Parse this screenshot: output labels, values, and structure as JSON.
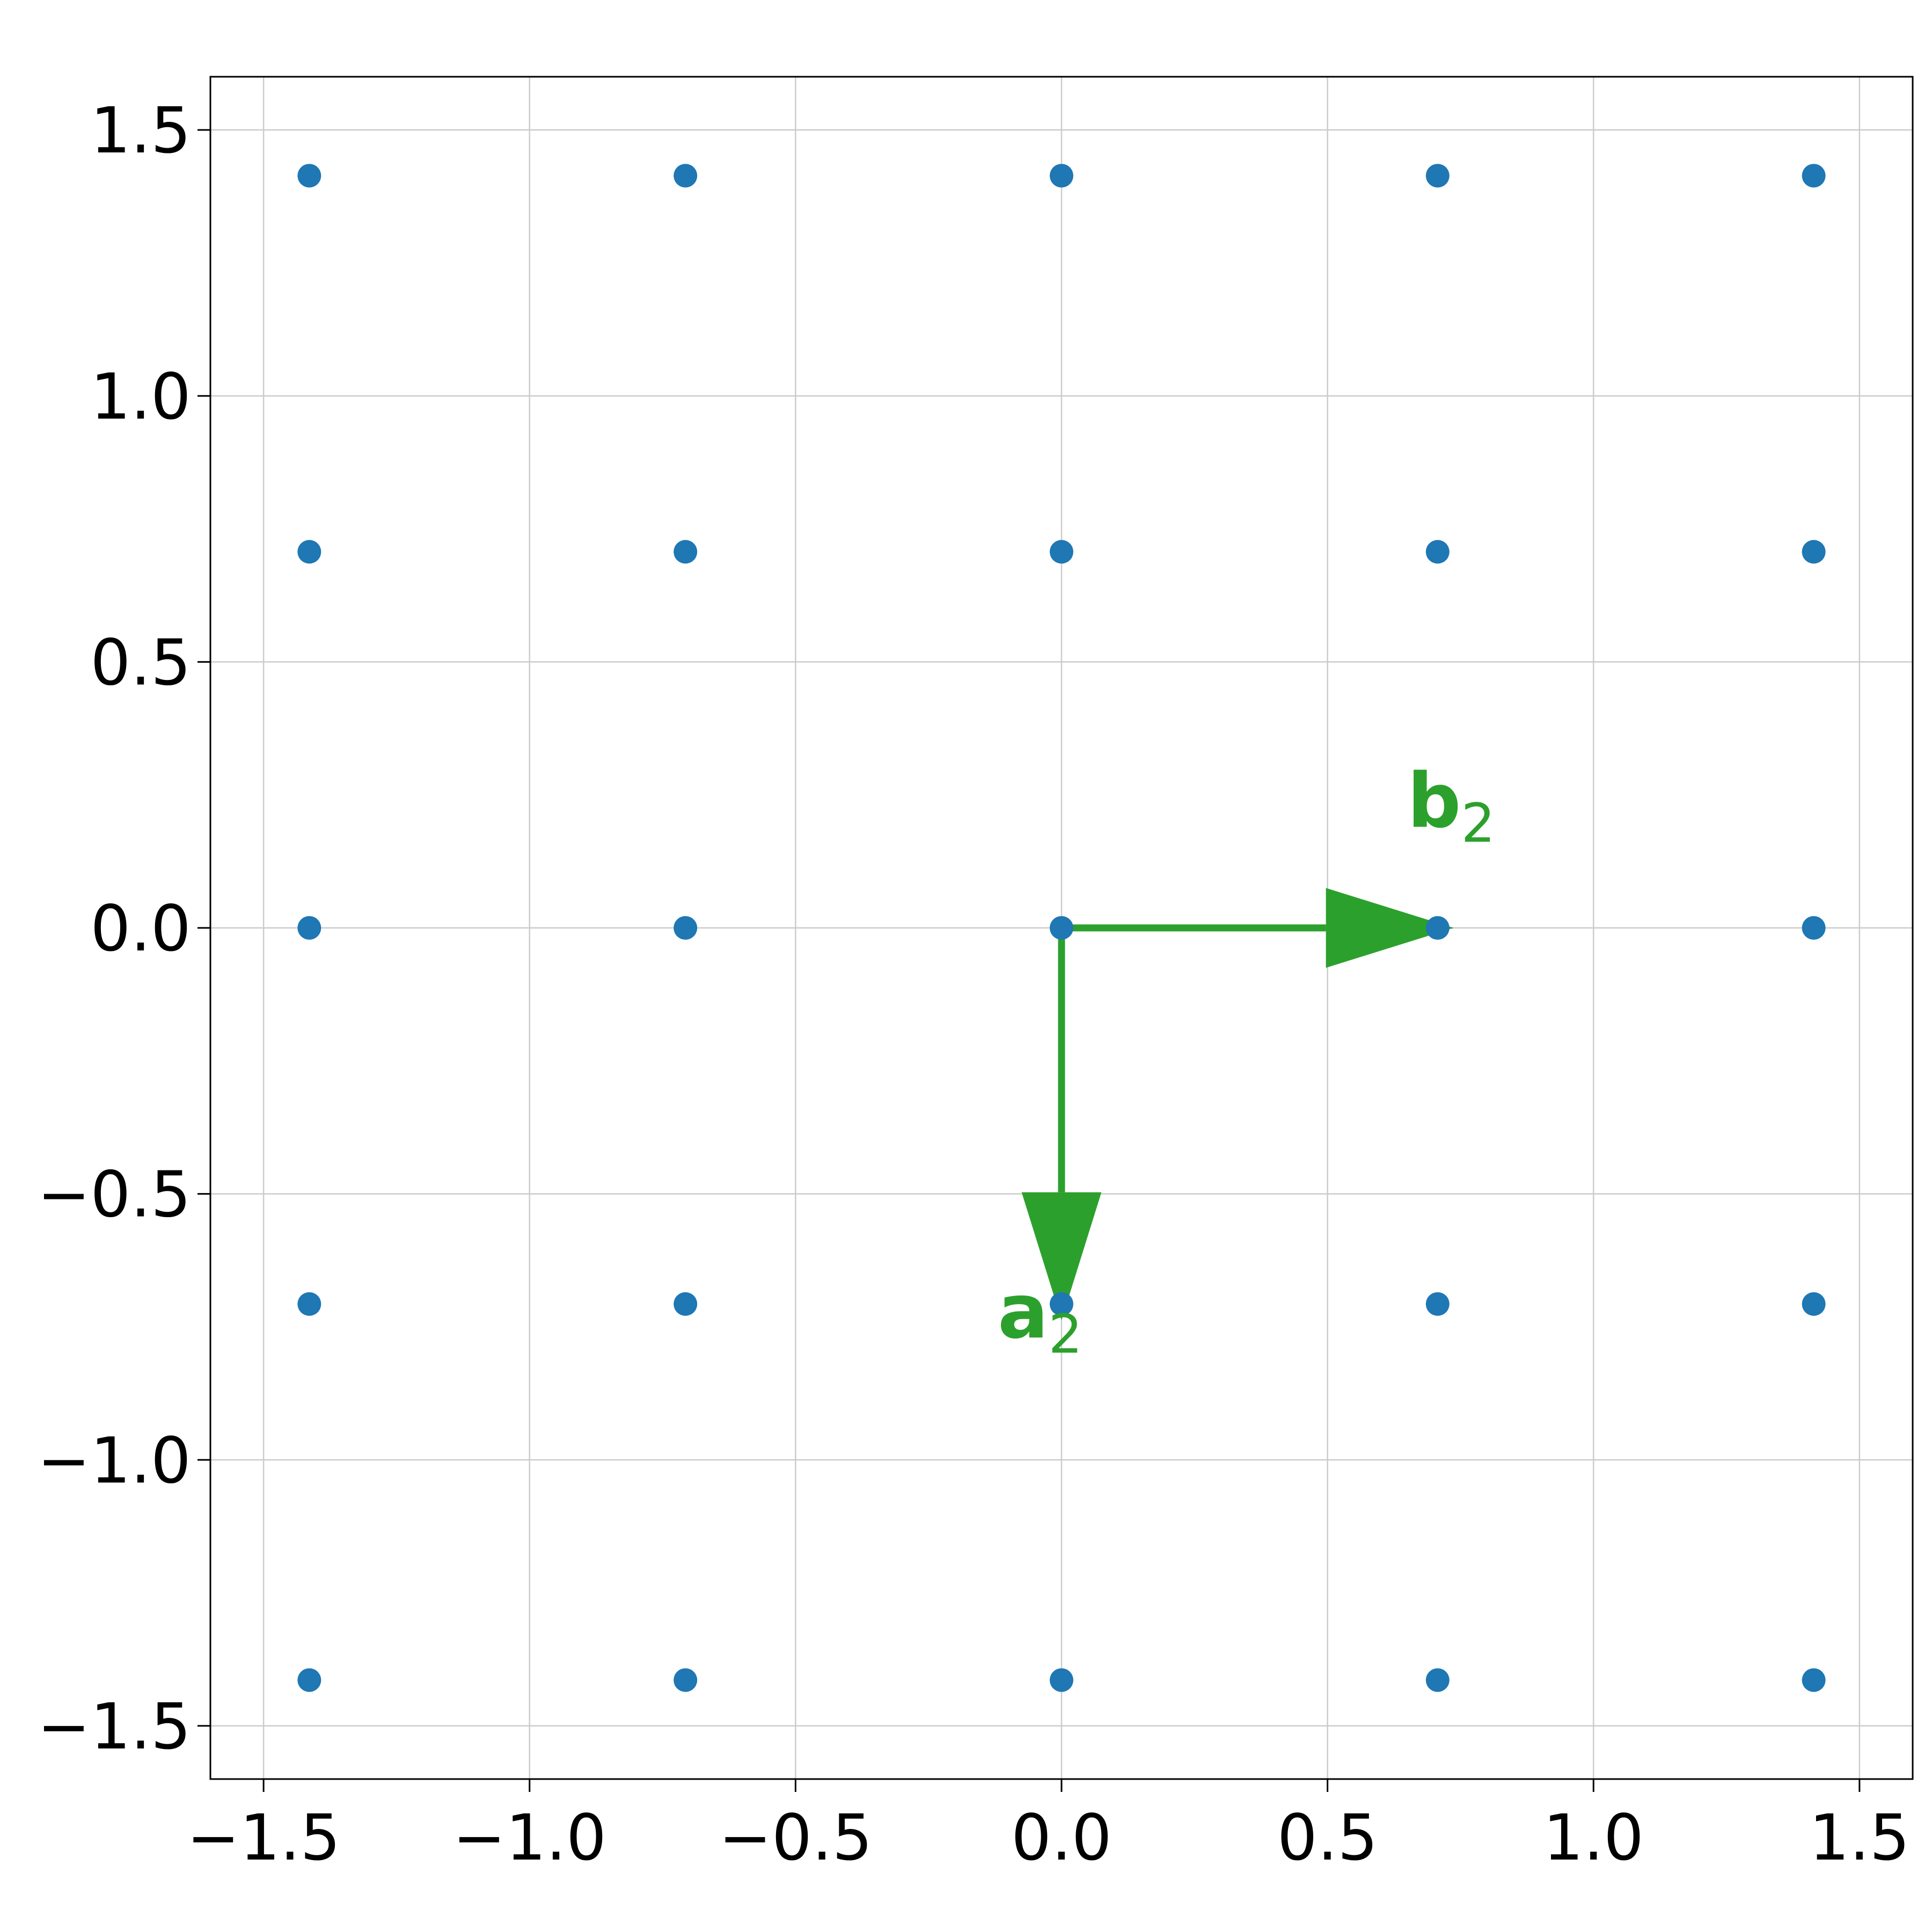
{
  "chart_data": {
    "type": "scatter",
    "xlim": [
      -1.6,
      1.6
    ],
    "ylim": [
      -1.6,
      1.6
    ],
    "grid": true,
    "xticks": [
      -1.5,
      -1.0,
      -0.5,
      0.0,
      0.5,
      1.0,
      1.5
    ],
    "xtick_labels": [
      "−1.5",
      "−1.0",
      "−0.5",
      "0.0",
      "0.5",
      "1.0",
      "1.5"
    ],
    "yticks": [
      1.5,
      1.0,
      0.5,
      0.0,
      -0.5,
      -1.0,
      -1.5
    ],
    "ytick_labels": [
      "1.5",
      "1.0",
      "0.5",
      "0.0",
      "−0.5",
      "−1.0",
      "−1.5"
    ],
    "points": {
      "x": [
        -1.414,
        -0.707,
        0,
        0.707,
        1.414,
        -1.414,
        -0.707,
        0,
        0.707,
        1.414,
        -1.414,
        -0.707,
        0,
        0.707,
        1.414,
        -1.414,
        -0.707,
        0,
        0.707,
        1.414,
        -1.414,
        -0.707,
        0,
        0.707,
        1.414
      ],
      "y": [
        1.414,
        1.414,
        1.414,
        1.414,
        1.414,
        0.707,
        0.707,
        0.707,
        0.707,
        0.707,
        0,
        0,
        0,
        0,
        0,
        -0.707,
        -0.707,
        -0.707,
        -0.707,
        -0.707,
        -1.414,
        -1.414,
        -1.414,
        -1.414,
        -1.414
      ],
      "color": "#1f77b4"
    },
    "vectors": [
      {
        "name": "a",
        "subscript": "2",
        "from": [
          0,
          0
        ],
        "to": [
          0,
          -0.707
        ],
        "label_at": [
          -0.12,
          -0.77
        ]
      },
      {
        "name": "b",
        "subscript": "2",
        "from": [
          0,
          0
        ],
        "to": [
          0.707,
          0
        ],
        "label_at": [
          0.65,
          0.19
        ]
      }
    ],
    "vector_color": "#2ca02c",
    "grid_color": "#cccccc"
  }
}
